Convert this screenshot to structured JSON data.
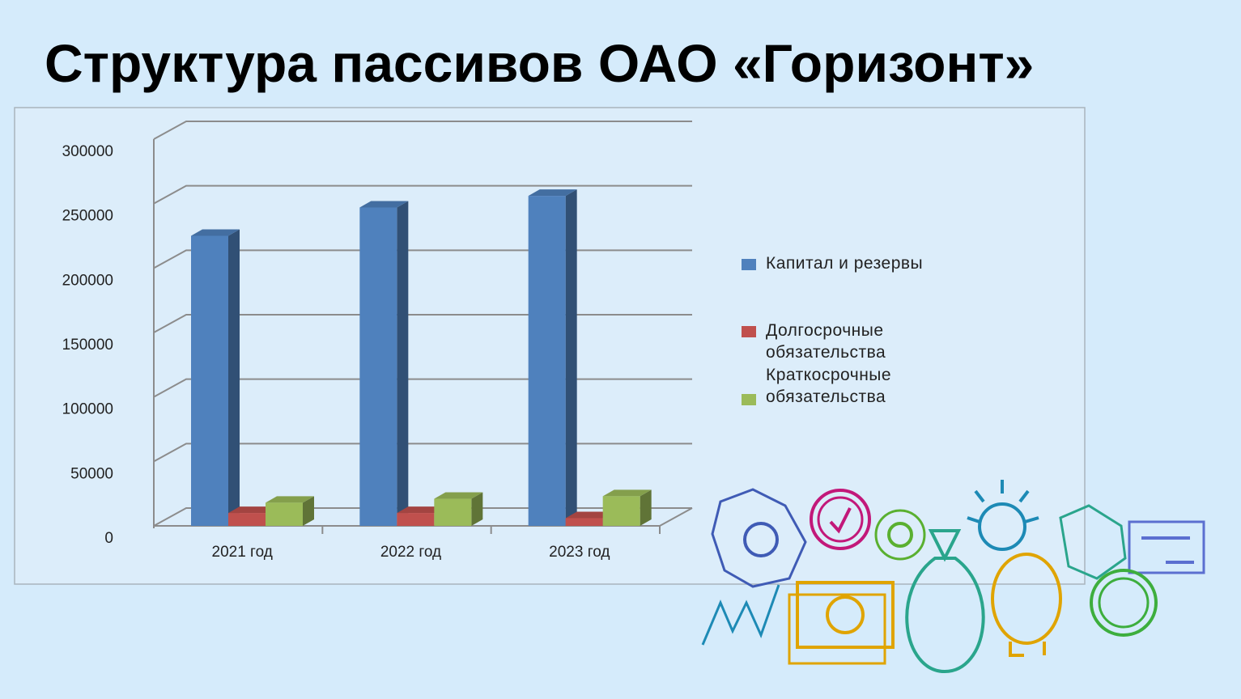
{
  "chart_data": {
    "type": "bar3d",
    "title": "Структура пассивов ОАО «Горизонт»",
    "categories": [
      "2021 год",
      "2022 год",
      "2023 год"
    ],
    "series": [
      {
        "name": "Капитал и резервы",
        "color": "#4f81bd",
        "values": [
          225000,
          247000,
          256000
        ]
      },
      {
        "name": "Долгосрочные обязательства",
        "color": "#c0504d",
        "values": [
          10000,
          10000,
          6000
        ]
      },
      {
        "name": "Краткосрочные обязательства",
        "color": "#9bbb59",
        "values": [
          18000,
          21000,
          23000
        ]
      }
    ],
    "ylim": [
      0,
      300000
    ],
    "yticks": [
      0,
      50000,
      100000,
      150000,
      200000,
      250000,
      300000
    ],
    "grid": true,
    "legend": "right"
  }
}
